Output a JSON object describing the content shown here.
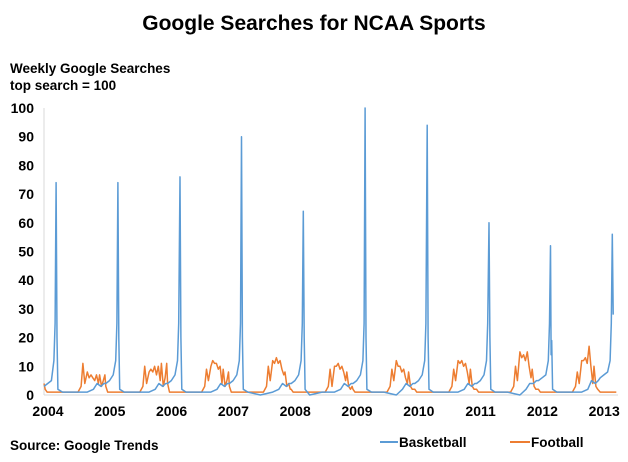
{
  "chart_data": {
    "type": "line",
    "title": "Google Searches for NCAA Sports",
    "ylabel": "Weekly Google Searches",
    "ylabel_sub": "top search = 100",
    "source": "Source: Google Trends",
    "xlim": [
      2004,
      2013.26
    ],
    "ylim": [
      0,
      100
    ],
    "x_ticks": [
      "2004",
      "2005",
      "2006",
      "2007",
      "2008",
      "2009",
      "2010",
      "2011",
      "2012",
      "2013"
    ],
    "y_ticks": [
      "0",
      "10",
      "20",
      "30",
      "40",
      "50",
      "60",
      "70",
      "80",
      "90",
      "100"
    ],
    "grid": false,
    "legend_position": "bottom-right",
    "series": [
      {
        "name": "Basketball",
        "color": "#5b9bd5",
        "points": [
          [
            2004.0,
            3
          ],
          [
            2004.06,
            4
          ],
          [
            2004.12,
            5
          ],
          [
            2004.16,
            12
          ],
          [
            2004.18,
            25
          ],
          [
            2004.195,
            74
          ],
          [
            2004.21,
            20
          ],
          [
            2004.225,
            2
          ],
          [
            2004.3,
            1
          ],
          [
            2004.5,
            1
          ],
          [
            2004.7,
            1
          ],
          [
            2004.8,
            2
          ],
          [
            2004.86,
            4
          ],
          [
            2004.92,
            3
          ],
          [
            2004.97,
            4
          ],
          [
            2005.0,
            4
          ],
          [
            2005.06,
            5
          ],
          [
            2005.12,
            7
          ],
          [
            2005.16,
            12
          ],
          [
            2005.18,
            25
          ],
          [
            2005.195,
            74
          ],
          [
            2005.21,
            20
          ],
          [
            2005.225,
            2
          ],
          [
            2005.3,
            1
          ],
          [
            2005.5,
            1
          ],
          [
            2005.7,
            1
          ],
          [
            2005.8,
            2
          ],
          [
            2005.86,
            4
          ],
          [
            2005.92,
            3
          ],
          [
            2005.97,
            4
          ],
          [
            2006.0,
            4
          ],
          [
            2006.06,
            5
          ],
          [
            2006.12,
            7
          ],
          [
            2006.16,
            12
          ],
          [
            2006.18,
            25
          ],
          [
            2006.2,
            76
          ],
          [
            2006.215,
            20
          ],
          [
            2006.23,
            2
          ],
          [
            2006.3,
            1
          ],
          [
            2006.5,
            1
          ],
          [
            2006.7,
            1
          ],
          [
            2006.8,
            2
          ],
          [
            2006.86,
            4
          ],
          [
            2006.92,
            3
          ],
          [
            2006.97,
            4
          ],
          [
            2007.0,
            4
          ],
          [
            2007.06,
            5
          ],
          [
            2007.12,
            7
          ],
          [
            2007.16,
            12
          ],
          [
            2007.18,
            25
          ],
          [
            2007.195,
            90
          ],
          [
            2007.21,
            20
          ],
          [
            2007.225,
            2
          ],
          [
            2007.3,
            1
          ],
          [
            2007.5,
            0
          ],
          [
            2007.7,
            1
          ],
          [
            2007.8,
            2
          ],
          [
            2007.86,
            4
          ],
          [
            2007.92,
            3
          ],
          [
            2007.97,
            4
          ],
          [
            2008.0,
            4
          ],
          [
            2008.06,
            5
          ],
          [
            2008.12,
            7
          ],
          [
            2008.16,
            12
          ],
          [
            2008.18,
            25
          ],
          [
            2008.195,
            64
          ],
          [
            2008.21,
            20
          ],
          [
            2008.225,
            2
          ],
          [
            2008.3,
            0
          ],
          [
            2008.5,
            1
          ],
          [
            2008.7,
            1
          ],
          [
            2008.8,
            2
          ],
          [
            2008.86,
            4
          ],
          [
            2008.92,
            3
          ],
          [
            2008.97,
            4
          ],
          [
            2009.0,
            4
          ],
          [
            2009.06,
            5
          ],
          [
            2009.12,
            7
          ],
          [
            2009.16,
            12
          ],
          [
            2009.18,
            25
          ],
          [
            2009.195,
            100
          ],
          [
            2009.21,
            20
          ],
          [
            2009.225,
            2
          ],
          [
            2009.3,
            1
          ],
          [
            2009.5,
            1
          ],
          [
            2009.7,
            0
          ],
          [
            2009.8,
            2
          ],
          [
            2009.86,
            4
          ],
          [
            2009.92,
            3
          ],
          [
            2009.97,
            4
          ],
          [
            2010.0,
            4
          ],
          [
            2010.06,
            5
          ],
          [
            2010.12,
            7
          ],
          [
            2010.16,
            12
          ],
          [
            2010.18,
            25
          ],
          [
            2010.2,
            94
          ],
          [
            2010.215,
            20
          ],
          [
            2010.23,
            2
          ],
          [
            2010.3,
            1
          ],
          [
            2010.5,
            1
          ],
          [
            2010.7,
            1
          ],
          [
            2010.8,
            2
          ],
          [
            2010.86,
            4
          ],
          [
            2010.92,
            3
          ],
          [
            2010.97,
            4
          ],
          [
            2011.0,
            4
          ],
          [
            2011.06,
            5
          ],
          [
            2011.12,
            7
          ],
          [
            2011.16,
            12
          ],
          [
            2011.18,
            25
          ],
          [
            2011.2,
            60
          ],
          [
            2011.215,
            20
          ],
          [
            2011.23,
            2
          ],
          [
            2011.3,
            1
          ],
          [
            2011.5,
            1
          ],
          [
            2011.7,
            0
          ],
          [
            2011.8,
            2
          ],
          [
            2011.86,
            4
          ],
          [
            2011.92,
            4
          ],
          [
            2011.97,
            5
          ],
          [
            2012.0,
            5
          ],
          [
            2012.06,
            6
          ],
          [
            2012.12,
            7
          ],
          [
            2012.16,
            12
          ],
          [
            2012.18,
            25
          ],
          [
            2012.195,
            52
          ],
          [
            2012.205,
            14
          ],
          [
            2012.215,
            19
          ],
          [
            2012.23,
            2
          ],
          [
            2012.3,
            1
          ],
          [
            2012.5,
            1
          ],
          [
            2012.7,
            1
          ],
          [
            2012.8,
            2
          ],
          [
            2012.86,
            5
          ],
          [
            2012.92,
            4
          ],
          [
            2012.97,
            5
          ],
          [
            2013.0,
            6
          ],
          [
            2013.06,
            7
          ],
          [
            2013.12,
            8
          ],
          [
            2013.16,
            12
          ],
          [
            2013.18,
            25
          ],
          [
            2013.195,
            56
          ],
          [
            2013.21,
            28
          ]
        ]
      },
      {
        "name": "Football",
        "color": "#ed7d31",
        "points": [
          [
            2004.0,
            4
          ],
          [
            2004.02,
            2
          ],
          [
            2004.05,
            1
          ],
          [
            2004.4,
            1
          ],
          [
            2004.55,
            1
          ],
          [
            2004.6,
            3
          ],
          [
            2004.63,
            11
          ],
          [
            2004.66,
            4
          ],
          [
            2004.7,
            8
          ],
          [
            2004.73,
            6
          ],
          [
            2004.76,
            7
          ],
          [
            2004.79,
            6
          ],
          [
            2004.82,
            5
          ],
          [
            2004.85,
            7
          ],
          [
            2004.88,
            4
          ],
          [
            2004.9,
            7
          ],
          [
            2004.93,
            3
          ],
          [
            2004.96,
            5
          ],
          [
            2004.985,
            7
          ],
          [
            2005.0,
            3
          ],
          [
            2005.03,
            1
          ],
          [
            2005.4,
            1
          ],
          [
            2005.55,
            1
          ],
          [
            2005.6,
            3
          ],
          [
            2005.63,
            10
          ],
          [
            2005.66,
            4
          ],
          [
            2005.7,
            8
          ],
          [
            2005.73,
            9
          ],
          [
            2005.76,
            8
          ],
          [
            2005.79,
            10
          ],
          [
            2005.82,
            7
          ],
          [
            2005.85,
            10
          ],
          [
            2005.88,
            5
          ],
          [
            2005.9,
            11
          ],
          [
            2005.93,
            3
          ],
          [
            2005.96,
            6
          ],
          [
            2005.985,
            11
          ],
          [
            2006.0,
            4
          ],
          [
            2006.03,
            1
          ],
          [
            2006.4,
            1
          ],
          [
            2006.55,
            1
          ],
          [
            2006.6,
            3
          ],
          [
            2006.63,
            9
          ],
          [
            2006.66,
            5
          ],
          [
            2006.7,
            10
          ],
          [
            2006.73,
            12
          ],
          [
            2006.76,
            11
          ],
          [
            2006.79,
            11
          ],
          [
            2006.82,
            9
          ],
          [
            2006.85,
            10
          ],
          [
            2006.88,
            4
          ],
          [
            2006.9,
            9
          ],
          [
            2006.93,
            3
          ],
          [
            2006.96,
            5
          ],
          [
            2006.985,
            8
          ],
          [
            2007.0,
            3
          ],
          [
            2007.03,
            1
          ],
          [
            2007.4,
            1
          ],
          [
            2007.55,
            1
          ],
          [
            2007.6,
            3
          ],
          [
            2007.63,
            10
          ],
          [
            2007.66,
            5
          ],
          [
            2007.7,
            12
          ],
          [
            2007.73,
            11
          ],
          [
            2007.76,
            13
          ],
          [
            2007.79,
            11
          ],
          [
            2007.82,
            12
          ],
          [
            2007.85,
            9
          ],
          [
            2007.88,
            7
          ],
          [
            2007.9,
            8
          ],
          [
            2007.93,
            3
          ],
          [
            2007.96,
            4
          ],
          [
            2007.985,
            2
          ],
          [
            2008.0,
            2
          ],
          [
            2008.03,
            1
          ],
          [
            2008.4,
            1
          ],
          [
            2008.55,
            1
          ],
          [
            2008.6,
            3
          ],
          [
            2008.63,
            9
          ],
          [
            2008.66,
            3
          ],
          [
            2008.7,
            10
          ],
          [
            2008.73,
            10
          ],
          [
            2008.76,
            11
          ],
          [
            2008.79,
            9
          ],
          [
            2008.82,
            10
          ],
          [
            2008.85,
            8
          ],
          [
            2008.88,
            5
          ],
          [
            2008.9,
            8
          ],
          [
            2008.93,
            3
          ],
          [
            2008.96,
            2
          ],
          [
            2008.985,
            3
          ],
          [
            2009.0,
            2
          ],
          [
            2009.03,
            1
          ],
          [
            2009.4,
            1
          ],
          [
            2009.55,
            1
          ],
          [
            2009.6,
            3
          ],
          [
            2009.63,
            9
          ],
          [
            2009.66,
            5
          ],
          [
            2009.7,
            12
          ],
          [
            2009.73,
            10
          ],
          [
            2009.76,
            10
          ],
          [
            2009.79,
            8
          ],
          [
            2009.82,
            9
          ],
          [
            2009.85,
            6
          ],
          [
            2009.88,
            4
          ],
          [
            2009.9,
            8
          ],
          [
            2009.93,
            3
          ],
          [
            2009.96,
            2
          ],
          [
            2010.0,
            2
          ],
          [
            2010.03,
            1
          ],
          [
            2010.4,
            1
          ],
          [
            2010.55,
            1
          ],
          [
            2010.6,
            3
          ],
          [
            2010.63,
            9
          ],
          [
            2010.66,
            5
          ],
          [
            2010.7,
            12
          ],
          [
            2010.73,
            11
          ],
          [
            2010.76,
            12
          ],
          [
            2010.79,
            10
          ],
          [
            2010.82,
            11
          ],
          [
            2010.85,
            8
          ],
          [
            2010.88,
            4
          ],
          [
            2010.9,
            9
          ],
          [
            2010.93,
            3
          ],
          [
            2010.96,
            2
          ],
          [
            2011.0,
            2
          ],
          [
            2011.03,
            1
          ],
          [
            2011.4,
            1
          ],
          [
            2011.55,
            1
          ],
          [
            2011.6,
            3
          ],
          [
            2011.63,
            10
          ],
          [
            2011.66,
            5
          ],
          [
            2011.7,
            15
          ],
          [
            2011.73,
            13
          ],
          [
            2011.76,
            14
          ],
          [
            2011.79,
            12
          ],
          [
            2011.82,
            15
          ],
          [
            2011.85,
            10
          ],
          [
            2011.88,
            6
          ],
          [
            2011.9,
            9
          ],
          [
            2011.93,
            3
          ],
          [
            2011.96,
            2
          ],
          [
            2012.0,
            2
          ],
          [
            2012.03,
            1
          ],
          [
            2012.4,
            1
          ],
          [
            2012.55,
            1
          ],
          [
            2012.6,
            3
          ],
          [
            2012.63,
            8
          ],
          [
            2012.66,
            4
          ],
          [
            2012.7,
            12
          ],
          [
            2012.73,
            12
          ],
          [
            2012.76,
            13
          ],
          [
            2012.79,
            11
          ],
          [
            2012.82,
            17
          ],
          [
            2012.85,
            10
          ],
          [
            2012.88,
            4
          ],
          [
            2012.9,
            10
          ],
          [
            2012.93,
            3
          ],
          [
            2012.96,
            2
          ],
          [
            2013.0,
            1
          ],
          [
            2013.26,
            1
          ]
        ]
      }
    ]
  }
}
